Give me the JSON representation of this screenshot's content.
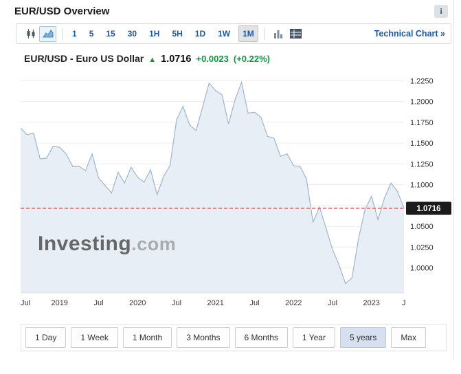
{
  "page": {
    "title": "EUR/USD Overview"
  },
  "header": {
    "info_icon": "i"
  },
  "toolbar": {
    "chart_type_buttons": [
      "candlestick",
      "area"
    ],
    "active_chart_type": "area",
    "intervals": [
      "1",
      "5",
      "15",
      "30",
      "1H",
      "5H",
      "1D",
      "1W",
      "1M"
    ],
    "selected_interval": "1M",
    "technical_chart_label": "Technical Chart",
    "technical_chart_arrow": "»"
  },
  "quote": {
    "name": "EUR/USD - Euro US Dollar",
    "arrow": "▲",
    "price": "1.0716",
    "change": "+0.0023",
    "change_pct": "(+0.22%)",
    "change_color": "#0a9b3e"
  },
  "chart_data": {
    "type": "area",
    "series_name": "EUR/USD",
    "values": [
      1.168,
      1.16,
      1.162,
      1.131,
      1.132,
      1.146,
      1.145,
      1.137,
      1.122,
      1.122,
      1.117,
      1.137,
      1.108,
      1.099,
      1.09,
      1.115,
      1.102,
      1.121,
      1.109,
      1.103,
      1.118,
      1.088,
      1.11,
      1.123,
      1.178,
      1.194,
      1.172,
      1.165,
      1.193,
      1.222,
      1.213,
      1.208,
      1.173,
      1.202,
      1.223,
      1.186,
      1.187,
      1.181,
      1.158,
      1.156,
      1.134,
      1.137,
      1.123,
      1.122,
      1.107,
      1.055,
      1.073,
      1.048,
      1.022,
      1.004,
      0.981,
      0.988,
      1.035,
      1.07,
      1.086,
      1.058,
      1.084,
      1.102,
      1.092,
      1.0716
    ],
    "x_tick_positions": [
      0,
      6,
      12,
      18,
      24,
      30,
      36,
      42,
      48,
      54
    ],
    "x_tick_labels": [
      "Jul",
      "2019",
      "Jul",
      "2020",
      "Jul",
      "2021",
      "Jul",
      "2022",
      "Jul",
      "2023"
    ],
    "x_edge_label": "J",
    "y_ticks": [
      1.225,
      1.2,
      1.175,
      1.15,
      1.125,
      1.1,
      1.075,
      1.05,
      1.025,
      1.0
    ],
    "y_tick_labels": [
      "1.2250",
      "1.2000",
      "1.1750",
      "1.1500",
      "1.1250",
      "1.1000",
      "1.0750",
      "1.0500",
      "1.0250",
      "1.0000"
    ],
    "ylim": [
      0.97,
      1.236
    ],
    "current_price": 1.0716,
    "current_price_label": "1.0716",
    "watermark": {
      "main": "Investing",
      "suffix": ".com"
    },
    "colors": {
      "area_fill": "#e8eef5",
      "line": "#9fb6ca",
      "dashed": "#e04848",
      "grid": "#ededed",
      "axis": "#e0e0e0",
      "price_tag_bg": "#1b1b1b"
    }
  },
  "range_buttons": {
    "items": [
      "1 Day",
      "1 Week",
      "1 Month",
      "3 Months",
      "6 Months",
      "1 Year",
      "5 years",
      "Max"
    ],
    "selected": "5 years"
  }
}
